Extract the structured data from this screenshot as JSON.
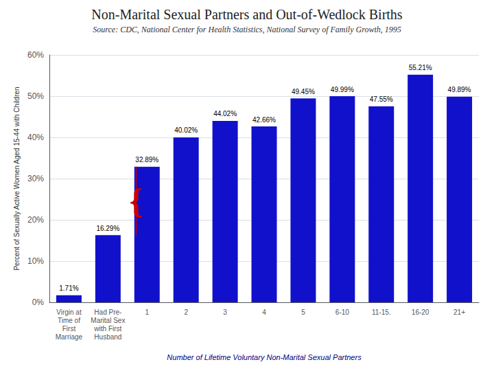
{
  "chart_data": {
    "type": "bar",
    "title": "Non-Marital Sexual Partners and Out-of-Wedlock Births",
    "subtitle": "Source: CDC, National Center for Health Statistics, National Survey of Family Growth, 1995",
    "categories": [
      "Virgin at\nTime of\nFirst\nMarriage",
      "Had Pre-\nMarital Sex\nwith First\nHusband",
      "1",
      "2",
      "3",
      "4",
      "5",
      "6-10",
      "11-15.",
      "16-20",
      "21+"
    ],
    "values": [
      1.71,
      16.29,
      32.89,
      40.02,
      44.02,
      42.66,
      49.45,
      49.99,
      47.55,
      55.21,
      49.89
    ],
    "value_labels": [
      "1.71%",
      "16.29%",
      "32.89%",
      "40.02%",
      "44.02%",
      "42.66%",
      "49.45%",
      "49.99%",
      "47.55%",
      "55.21%",
      "49.89%"
    ],
    "data_labels": true,
    "color": "#1111CC",
    "xlabel": "Number of Lifetime Voluntary Non-Marital Sexual Partners",
    "ylabel": "Percent of Sexually Active Women Aged 15-44 with Children",
    "ylim": [
      0,
      60
    ],
    "yticks": [
      {
        "value": 0,
        "label": "0%"
      },
      {
        "value": 10,
        "label": "10%"
      },
      {
        "value": 20,
        "label": "20%"
      },
      {
        "value": 30,
        "label": "30%"
      },
      {
        "value": 40,
        "label": "40%"
      },
      {
        "value": 50,
        "label": "50%"
      },
      {
        "value": 60,
        "label": "60%"
      }
    ],
    "grid": true,
    "annotations": [
      {
        "text": "{",
        "color": "#CC0000",
        "between": [
          "Had Pre-\nMarital Sex\nwith First\nHusband",
          "1"
        ],
        "from": 16.29,
        "to": 32.89
      }
    ]
  }
}
